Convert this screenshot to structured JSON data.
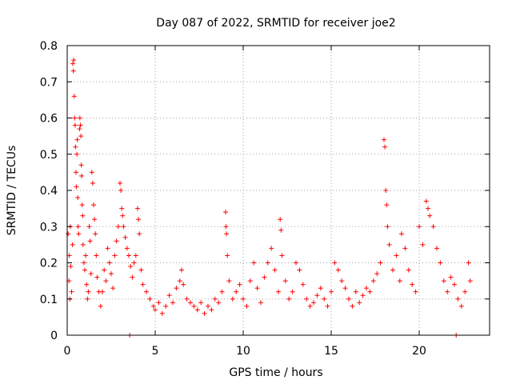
{
  "chart_data": {
    "type": "scatter",
    "title": "Day 087 of 2022, SRMTID for receiver joe2",
    "xlabel": "GPS time / hours",
    "ylabel": "SRMTID / TECUs",
    "xlim": [
      0,
      24
    ],
    "ylim": [
      0,
      0.8
    ],
    "xticks": [
      0,
      5,
      10,
      15,
      20
    ],
    "yticks": [
      0,
      0.1,
      0.2,
      0.3,
      0.4,
      0.5,
      0.6,
      0.7,
      0.8
    ],
    "xtick_labels": [
      "0",
      "5",
      "10",
      "15",
      "20"
    ],
    "ytick_labels": [
      "0",
      "0.1",
      "0.2",
      "0.3",
      "0.4",
      "0.5",
      "0.6",
      "0.7",
      "0.8"
    ],
    "grid": true,
    "marker": "+",
    "color": "#ff0000",
    "series": [
      {
        "name": "SRMTID",
        "points": [
          [
            0.05,
            0.28
          ],
          [
            0.1,
            0.15
          ],
          [
            0.12,
            0.22
          ],
          [
            0.15,
            0.1
          ],
          [
            0.18,
            0.3
          ],
          [
            0.2,
            0.19
          ],
          [
            0.25,
            0.12
          ],
          [
            0.3,
            0.25
          ],
          [
            0.32,
            0.75
          ],
          [
            0.35,
            0.73
          ],
          [
            0.37,
            0.76
          ],
          [
            0.4,
            0.66
          ],
          [
            0.42,
            0.6
          ],
          [
            0.45,
            0.58
          ],
          [
            0.47,
            0.52
          ],
          [
            0.5,
            0.45
          ],
          [
            0.52,
            0.41
          ],
          [
            0.55,
            0.5
          ],
          [
            0.57,
            0.54
          ],
          [
            0.6,
            0.38
          ],
          [
            0.62,
            0.3
          ],
          [
            0.65,
            0.28
          ],
          [
            0.7,
            0.57
          ],
          [
            0.72,
            0.6
          ],
          [
            0.75,
            0.58
          ],
          [
            0.78,
            0.55
          ],
          [
            0.8,
            0.47
          ],
          [
            0.82,
            0.44
          ],
          [
            0.85,
            0.36
          ],
          [
            0.88,
            0.33
          ],
          [
            0.9,
            0.25
          ],
          [
            0.95,
            0.2
          ],
          [
            1.0,
            0.18
          ],
          [
            1.05,
            0.22
          ],
          [
            1.1,
            0.14
          ],
          [
            1.15,
            0.1
          ],
          [
            1.2,
            0.12
          ],
          [
            1.25,
            0.3
          ],
          [
            1.3,
            0.26
          ],
          [
            1.35,
            0.17
          ],
          [
            1.4,
            0.45
          ],
          [
            1.45,
            0.42
          ],
          [
            1.5,
            0.36
          ],
          [
            1.55,
            0.32
          ],
          [
            1.6,
            0.28
          ],
          [
            1.65,
            0.22
          ],
          [
            1.7,
            0.16
          ],
          [
            1.8,
            0.12
          ],
          [
            1.9,
            0.08
          ],
          [
            2.0,
            0.12
          ],
          [
            2.1,
            0.18
          ],
          [
            2.2,
            0.15
          ],
          [
            2.3,
            0.24
          ],
          [
            2.4,
            0.2
          ],
          [
            2.5,
            0.17
          ],
          [
            2.6,
            0.13
          ],
          [
            2.7,
            0.22
          ],
          [
            2.8,
            0.26
          ],
          [
            2.9,
            0.3
          ],
          [
            3.0,
            0.42
          ],
          [
            3.05,
            0.4
          ],
          [
            3.1,
            0.35
          ],
          [
            3.15,
            0.33
          ],
          [
            3.2,
            0.3
          ],
          [
            3.3,
            0.27
          ],
          [
            3.4,
            0.24
          ],
          [
            3.5,
            0.22
          ],
          [
            3.55,
            0.0
          ],
          [
            3.6,
            0.19
          ],
          [
            3.7,
            0.16
          ],
          [
            3.8,
            0.2
          ],
          [
            3.9,
            0.22
          ],
          [
            4.0,
            0.35
          ],
          [
            4.05,
            0.32
          ],
          [
            4.1,
            0.28
          ],
          [
            4.2,
            0.18
          ],
          [
            4.3,
            0.14
          ],
          [
            4.5,
            0.12
          ],
          [
            4.7,
            0.1
          ],
          [
            4.9,
            0.08
          ],
          [
            5.0,
            0.07
          ],
          [
            5.2,
            0.09
          ],
          [
            5.4,
            0.06
          ],
          [
            5.6,
            0.08
          ],
          [
            5.8,
            0.11
          ],
          [
            6.0,
            0.09
          ],
          [
            6.2,
            0.13
          ],
          [
            6.4,
            0.15
          ],
          [
            6.5,
            0.18
          ],
          [
            6.6,
            0.14
          ],
          [
            6.8,
            0.1
          ],
          [
            7.0,
            0.09
          ],
          [
            7.2,
            0.08
          ],
          [
            7.4,
            0.07
          ],
          [
            7.6,
            0.09
          ],
          [
            7.8,
            0.06
          ],
          [
            8.0,
            0.08
          ],
          [
            8.2,
            0.07
          ],
          [
            8.4,
            0.1
          ],
          [
            8.6,
            0.09
          ],
          [
            8.8,
            0.12
          ],
          [
            9.0,
            0.34
          ],
          [
            9.02,
            0.3
          ],
          [
            9.05,
            0.28
          ],
          [
            9.1,
            0.22
          ],
          [
            9.2,
            0.15
          ],
          [
            9.4,
            0.1
          ],
          [
            9.6,
            0.12
          ],
          [
            9.8,
            0.14
          ],
          [
            10.0,
            0.1
          ],
          [
            10.2,
            0.08
          ],
          [
            10.4,
            0.15
          ],
          [
            10.6,
            0.2
          ],
          [
            10.8,
            0.13
          ],
          [
            11.0,
            0.09
          ],
          [
            11.2,
            0.16
          ],
          [
            11.4,
            0.2
          ],
          [
            11.6,
            0.24
          ],
          [
            11.8,
            0.18
          ],
          [
            12.0,
            0.12
          ],
          [
            12.1,
            0.32
          ],
          [
            12.15,
            0.29
          ],
          [
            12.2,
            0.22
          ],
          [
            12.4,
            0.15
          ],
          [
            12.6,
            0.1
          ],
          [
            12.8,
            0.12
          ],
          [
            13.0,
            0.2
          ],
          [
            13.2,
            0.18
          ],
          [
            13.4,
            0.14
          ],
          [
            13.6,
            0.1
          ],
          [
            13.8,
            0.08
          ],
          [
            14.0,
            0.09
          ],
          [
            14.2,
            0.11
          ],
          [
            14.4,
            0.13
          ],
          [
            14.6,
            0.1
          ],
          [
            14.8,
            0.08
          ],
          [
            15.0,
            0.12
          ],
          [
            15.2,
            0.2
          ],
          [
            15.4,
            0.18
          ],
          [
            15.6,
            0.15
          ],
          [
            15.8,
            0.13
          ],
          [
            16.0,
            0.1
          ],
          [
            16.2,
            0.08
          ],
          [
            16.4,
            0.12
          ],
          [
            16.6,
            0.09
          ],
          [
            16.8,
            0.11
          ],
          [
            17.0,
            0.13
          ],
          [
            17.2,
            0.12
          ],
          [
            17.4,
            0.15
          ],
          [
            17.6,
            0.17
          ],
          [
            17.8,
            0.2
          ],
          [
            18.0,
            0.54
          ],
          [
            18.05,
            0.52
          ],
          [
            18.1,
            0.4
          ],
          [
            18.15,
            0.36
          ],
          [
            18.2,
            0.3
          ],
          [
            18.3,
            0.25
          ],
          [
            18.5,
            0.18
          ],
          [
            18.7,
            0.22
          ],
          [
            18.9,
            0.15
          ],
          [
            19.0,
            0.28
          ],
          [
            19.2,
            0.24
          ],
          [
            19.4,
            0.18
          ],
          [
            19.6,
            0.14
          ],
          [
            19.8,
            0.12
          ],
          [
            20.0,
            0.3
          ],
          [
            20.2,
            0.25
          ],
          [
            20.4,
            0.37
          ],
          [
            20.5,
            0.35
          ],
          [
            20.6,
            0.33
          ],
          [
            20.8,
            0.3
          ],
          [
            21.0,
            0.24
          ],
          [
            21.2,
            0.2
          ],
          [
            21.4,
            0.15
          ],
          [
            21.6,
            0.12
          ],
          [
            21.8,
            0.16
          ],
          [
            22.0,
            0.14
          ],
          [
            22.1,
            0.0
          ],
          [
            22.2,
            0.1
          ],
          [
            22.4,
            0.08
          ],
          [
            22.6,
            0.12
          ],
          [
            22.8,
            0.2
          ],
          [
            22.9,
            0.15
          ]
        ]
      }
    ]
  }
}
